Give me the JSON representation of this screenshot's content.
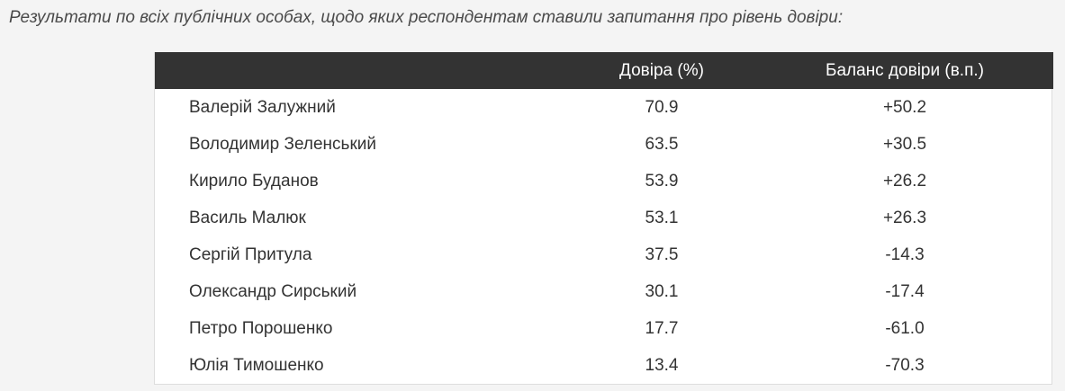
{
  "intro": "Результати по всіх публічних особах, щодо яких респондентам ставили запитання про рівень довіри:",
  "table": {
    "headers": [
      "",
      "Довіра (%)",
      "Баланс довіри (в.п.)"
    ],
    "rows": [
      {
        "name": "Валерій Залужний",
        "trust": "70.9",
        "balance": "+50.2"
      },
      {
        "name": "Володимир Зеленський",
        "trust": "63.5",
        "balance": "+30.5"
      },
      {
        "name": "Кирило Буданов",
        "trust": "53.9",
        "balance": "+26.2"
      },
      {
        "name": "Василь Малюк",
        "trust": "53.1",
        "balance": "+26.3"
      },
      {
        "name": "Сергій Притула",
        "trust": "37.5",
        "balance": "-14.3"
      },
      {
        "name": "Олександр Сирський",
        "trust": "30.1",
        "balance": "-17.4"
      },
      {
        "name": "Петро Порошенко",
        "trust": "17.7",
        "balance": "-61.0"
      },
      {
        "name": "Юлія Тимошенко",
        "trust": "13.4",
        "balance": "-70.3"
      }
    ]
  }
}
